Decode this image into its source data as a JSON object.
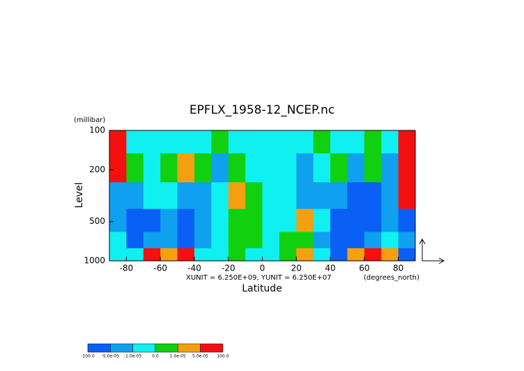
{
  "chart_data": {
    "type": "contour",
    "title": "EPFLX_1958-12_NCEP.nc",
    "y_unit": "(millibar)",
    "ylabel": "Level",
    "xlabel": "Latitude",
    "x_unit": "(degrees_north)",
    "scale_note": "XUNIT = 6.250E+09, YUNIT = 6.250E+07",
    "xlim": [
      -90,
      90
    ],
    "xticks": [
      -80,
      -60,
      -40,
      -20,
      0,
      20,
      40,
      60,
      80
    ],
    "ylim": [
      100,
      1000
    ],
    "yticks": [
      100,
      200,
      500,
      1000
    ],
    "ylog": true,
    "x_edges": [
      -90,
      -80,
      -70,
      -60,
      -50,
      -40,
      -30,
      -20,
      -10,
      0,
      10,
      20,
      30,
      40,
      50,
      60,
      70,
      80,
      90
    ],
    "y_edges": [
      100,
      150,
      250,
      400,
      600,
      800,
      1000
    ],
    "z": [
      [
        8e-05,
        -5e-06,
        -5e-06,
        -5e-06,
        -5e-06,
        -5e-06,
        5e-06,
        -5e-06,
        -5e-06,
        -5e-06,
        -5e-06,
        -5e-06,
        5e-06,
        -5e-06,
        -5e-06,
        5e-06,
        -5e-06,
        8e-05
      ],
      [
        8e-05,
        5e-06,
        -5e-06,
        5e-06,
        3e-05,
        5e-06,
        -3e-05,
        5e-06,
        -5e-06,
        -5e-06,
        -5e-06,
        -3e-05,
        -5e-06,
        5e-06,
        -3e-05,
        5e-06,
        -3e-05,
        8e-05
      ],
      [
        -3e-05,
        -3e-05,
        -5e-06,
        -5e-06,
        -3e-05,
        -3e-05,
        -5e-06,
        3e-05,
        5e-06,
        -5e-06,
        -5e-06,
        -3e-05,
        -3e-05,
        -3e-05,
        -8e-05,
        -8e-05,
        -3e-05,
        8e-05
      ],
      [
        -3e-05,
        -8e-05,
        -8e-05,
        -3e-05,
        -8e-05,
        -3e-05,
        -5e-06,
        5e-06,
        5e-06,
        -5e-06,
        -5e-06,
        3e-05,
        -5e-06,
        -8e-05,
        -8e-05,
        -8e-05,
        -3e-05,
        -8e-05
      ],
      [
        -5e-06,
        -8e-05,
        -3e-05,
        -3e-05,
        -8e-05,
        -3e-05,
        -5e-06,
        5e-06,
        5e-06,
        -5e-06,
        5e-06,
        5e-06,
        -3e-05,
        -8e-05,
        -8e-05,
        -3e-05,
        -5e-06,
        -3e-05
      ],
      [
        -5e-06,
        -5e-06,
        8e-05,
        3e-05,
        8e-05,
        -5e-06,
        -5e-06,
        5e-06,
        -5e-06,
        -5e-06,
        5e-06,
        3e-05,
        -5e-06,
        -8e-05,
        3e-05,
        8e-05,
        3e-05,
        -8e-05
      ]
    ],
    "levels": [
      {
        "value": -100,
        "label": "-100.0"
      },
      {
        "value": -5e-05,
        "label": "-5.0e-05"
      },
      {
        "value": -1e-05,
        "label": "-1.0e-05"
      },
      {
        "value": 0,
        "label": "0.0"
      },
      {
        "value": 1e-05,
        "label": "1.0e-05"
      },
      {
        "value": 5e-05,
        "label": "5.0e-05"
      },
      {
        "value": 100,
        "label": "100.0"
      }
    ],
    "colors": [
      "#0a5ff5",
      "#10a0f0",
      "#10f0f0",
      "#10d010",
      "#f5a010",
      "#f51010"
    ]
  }
}
